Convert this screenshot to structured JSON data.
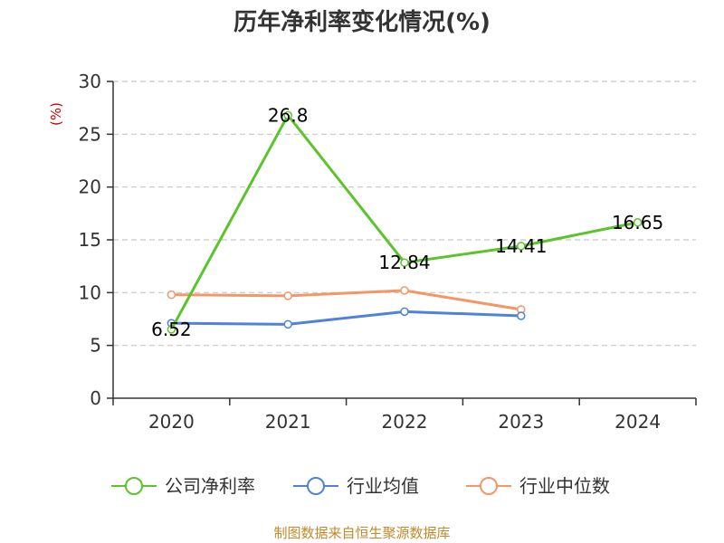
{
  "chart_data": {
    "type": "line",
    "title": "历年净利率变化情况(%)",
    "ylabel": "(%)",
    "xlabel": "",
    "categories": [
      "2020",
      "2021",
      "2022",
      "2023",
      "2024"
    ],
    "ylim": [
      0,
      30
    ],
    "yticks": [
      0,
      5,
      10,
      15,
      20,
      25,
      30
    ],
    "grid": true,
    "legend_position": "bottom",
    "series": [
      {
        "name": "公司净利率",
        "color": "#5ac42a",
        "values": [
          6.52,
          26.8,
          12.84,
          14.41,
          16.65
        ],
        "show_labels": true
      },
      {
        "name": "行业均值",
        "color": "#4e83d9",
        "values": [
          7.1,
          7.0,
          8.2,
          7.8,
          null
        ],
        "show_labels": false
      },
      {
        "name": "行业中位数",
        "color": "#f59666",
        "values": [
          9.8,
          9.7,
          10.2,
          8.4,
          null
        ],
        "show_labels": false
      }
    ]
  },
  "source": "制图数据来自恒生聚源数据库",
  "colors": {
    "axis": "#333333",
    "grid": "#c8c8c8",
    "ylabel": "#cc0000",
    "source": "#c08a2a"
  }
}
